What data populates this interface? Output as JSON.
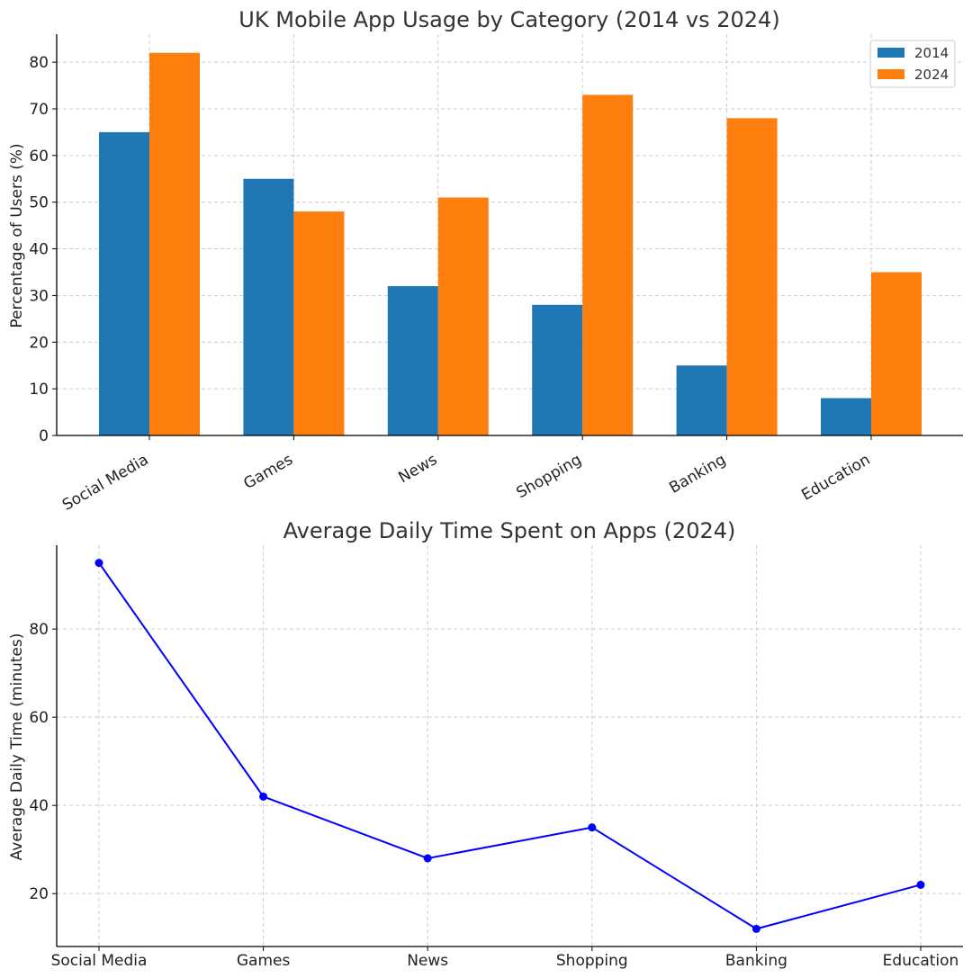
{
  "chart_data": [
    {
      "type": "bar",
      "title": "UK Mobile App Usage by Category (2014 vs 2024)",
      "xlabel": "",
      "ylabel": "Percentage of Users (%)",
      "categories": [
        "Social Media",
        "Games",
        "News",
        "Shopping",
        "Banking",
        "Education"
      ],
      "series": [
        {
          "name": "2014",
          "values": [
            65,
            55,
            32,
            28,
            15,
            8
          ],
          "color": "#1f77b4"
        },
        {
          "name": "2024",
          "values": [
            82,
            48,
            51,
            73,
            68,
            35
          ],
          "color": "#ff7f0e"
        }
      ],
      "ylim": [
        0,
        86
      ],
      "yticks": [
        0,
        10,
        20,
        30,
        40,
        50,
        60,
        70,
        80
      ],
      "grid": true,
      "legend": "top-right"
    },
    {
      "type": "line",
      "title": "Average Daily Time Spent on Apps (2024)",
      "xlabel": "",
      "ylabel": "Average Daily Time (minutes)",
      "categories": [
        "Social Media",
        "Games",
        "News",
        "Shopping",
        "Banking",
        "Education"
      ],
      "series": [
        {
          "values": [
            95,
            42,
            28,
            35,
            12,
            22
          ],
          "color": "#0000ff"
        }
      ],
      "ylim": [
        8,
        99
      ],
      "yticks": [
        20,
        40,
        60,
        80
      ],
      "grid": true
    }
  ]
}
